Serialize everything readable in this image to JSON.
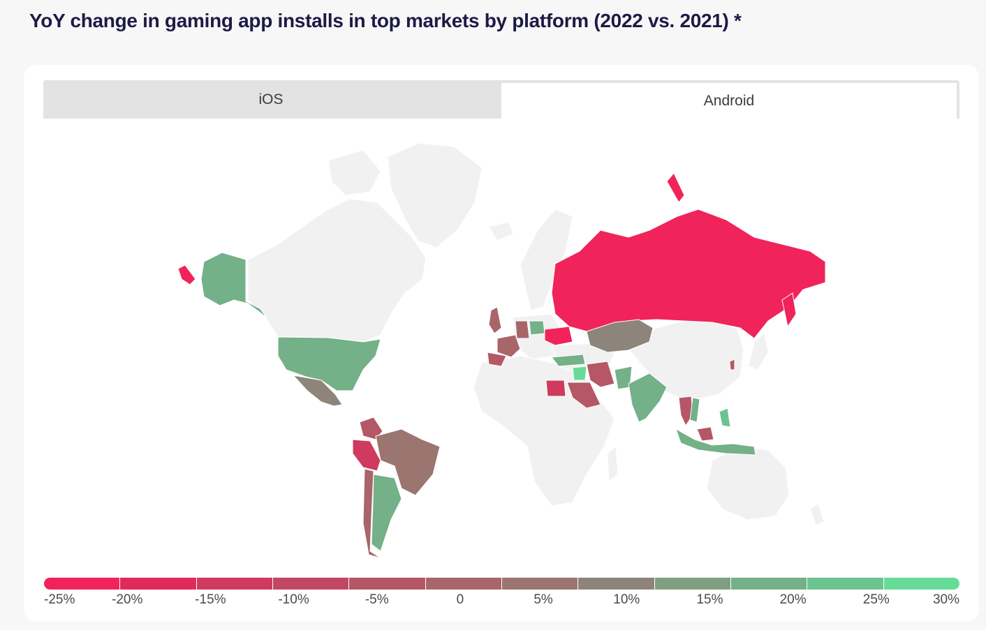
{
  "title": "YoY change in gaming app installs in top markets by platform (2022 vs. 2021) *",
  "tabs": [
    {
      "label": "iOS",
      "active": false
    },
    {
      "label": "Android",
      "active": true
    }
  ],
  "legend": {
    "ticks": [
      "-25%",
      "-20%",
      "-15%",
      "-10%",
      "-5%",
      "0",
      "5%",
      "10%",
      "15%",
      "20%",
      "25%",
      "30%"
    ],
    "colors": [
      "#f0245a",
      "#e02a5a",
      "#cf3a5e",
      "#c14862",
      "#b55766",
      "#a8656a",
      "#9b7570",
      "#8d857a",
      "#7fa080",
      "#74b088",
      "#6bc38e",
      "#67db98"
    ]
  },
  "colors": {
    "land": "#f1f1f1",
    "border": "#ffffff"
  },
  "chart_data": {
    "type": "choropleth",
    "title": "YoY change in gaming app installs in top markets by platform (2022 vs. 2021) *",
    "platform": "Android",
    "scale": {
      "min": -25,
      "max": 30,
      "unit": "%"
    },
    "regions": [
      {
        "name": "Russia",
        "color": "#f0245a"
      },
      {
        "name": "United States",
        "color": "#74b088"
      },
      {
        "name": "Mexico",
        "color": "#8d857a"
      },
      {
        "name": "Brazil",
        "color": "#9b7570"
      },
      {
        "name": "Peru",
        "color": "#cf3a5e"
      },
      {
        "name": "Colombia",
        "color": "#b55766"
      },
      {
        "name": "Argentina",
        "color": "#74b088"
      },
      {
        "name": "Chile",
        "color": "#a8656a"
      },
      {
        "name": "United Kingdom",
        "color": "#a8656a"
      },
      {
        "name": "France",
        "color": "#a8656a"
      },
      {
        "name": "Spain",
        "color": "#b55766"
      },
      {
        "name": "Germany",
        "color": "#a8656a"
      },
      {
        "name": "Poland",
        "color": "#74b088"
      },
      {
        "name": "Ukraine",
        "color": "#f0245a"
      },
      {
        "name": "Turkey",
        "color": "#74b088"
      },
      {
        "name": "Iraq",
        "color": "#67db98"
      },
      {
        "name": "Egypt",
        "color": "#cf3a5e"
      },
      {
        "name": "Saudi Arabia",
        "color": "#b55766"
      },
      {
        "name": "Iran",
        "color": "#b55766"
      },
      {
        "name": "Kazakhstan",
        "color": "#8d857a"
      },
      {
        "name": "Pakistan",
        "color": "#74b088"
      },
      {
        "name": "India",
        "color": "#74b088"
      },
      {
        "name": "Thailand",
        "color": "#b55766"
      },
      {
        "name": "Vietnam",
        "color": "#74b088"
      },
      {
        "name": "Malaysia",
        "color": "#b55766"
      },
      {
        "name": "Philippines",
        "color": "#6bc38e"
      },
      {
        "name": "Indonesia",
        "color": "#74b088"
      },
      {
        "name": "South Korea",
        "color": "#b55766"
      }
    ]
  }
}
